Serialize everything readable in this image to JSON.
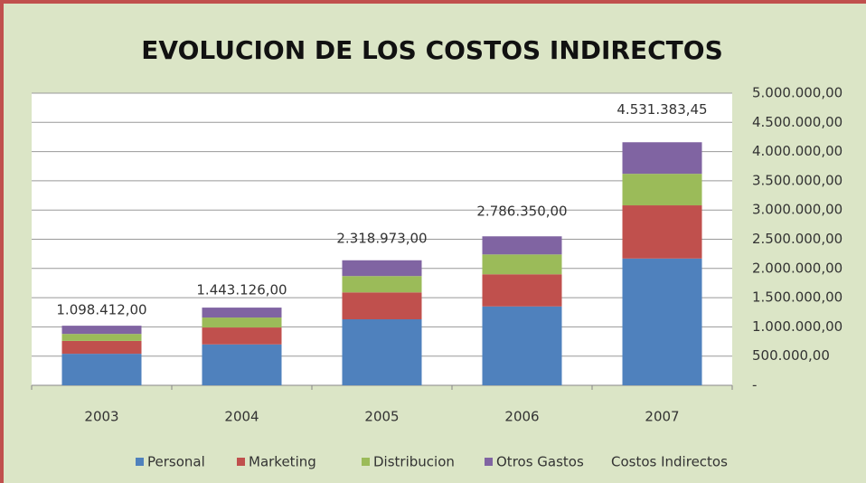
{
  "chart_data": {
    "type": "stacked_bar",
    "title": "EVOLUCION DE LOS COSTOS INDIRECTOS",
    "categories": [
      "2003",
      "2004",
      "2005",
      "2006",
      "2007"
    ],
    "series": [
      {
        "name": "Personal",
        "color": "#4f81bd",
        "values": [
          540000,
          700000,
          1130000,
          1350000,
          2170000
        ]
      },
      {
        "name": "Marketing",
        "color": "#c0504d",
        "values": [
          220000,
          290000,
          460000,
          550000,
          910000
        ]
      },
      {
        "name": "Distribucion",
        "color": "#9bbb59",
        "values": [
          120000,
          170000,
          280000,
          340000,
          540000
        ]
      },
      {
        "name": "Otros Gastos",
        "color": "#8064a2",
        "values": [
          140000,
          170000,
          270000,
          310000,
          540000
        ]
      },
      {
        "name": "Costos Indirectos",
        "type": "line",
        "values": [
          1098412,
          1443126,
          2318973,
          2786350,
          4531383.45
        ],
        "value_labels": [
          "1.098.412,00",
          "1.443.126,00",
          "2.318.973,00",
          "2.786.350,00",
          "4.531.383,45"
        ]
      }
    ],
    "ylim": [
      0,
      5000000
    ],
    "yticks": [
      {
        "value": 0,
        "label": "-"
      },
      {
        "value": 500000,
        "label": "500.000,00"
      },
      {
        "value": 1000000,
        "label": "1.000.000,00"
      },
      {
        "value": 1500000,
        "label": "1.500.000,00"
      },
      {
        "value": 2000000,
        "label": "2.000.000,00"
      },
      {
        "value": 2500000,
        "label": "2.500.000,00"
      },
      {
        "value": 3000000,
        "label": "3.000.000,00"
      },
      {
        "value": 3500000,
        "label": "3.500.000,00"
      },
      {
        "value": 4000000,
        "label": "4.000.000,00"
      },
      {
        "value": 4500000,
        "label": "4.500.000,00"
      },
      {
        "value": 5000000,
        "label": "5.000.000,00"
      }
    ],
    "y_axis_side": "right",
    "grid": true,
    "legend": "bottom"
  }
}
